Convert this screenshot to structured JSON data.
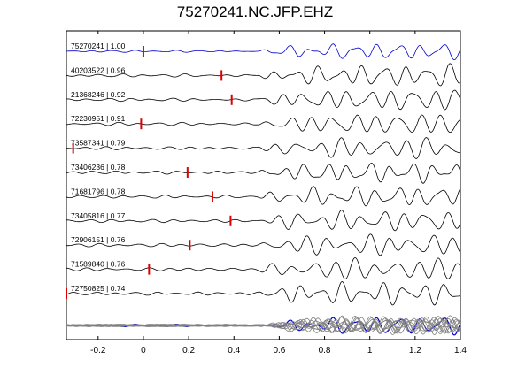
{
  "figure": {
    "title": "75270241.NC.JFP.EHZ"
  },
  "chart_data": {
    "type": "line",
    "title": "75270241.NC.JFP.EHZ",
    "xlabel": "",
    "ylabel": "",
    "xlim": [
      -0.34,
      1.4
    ],
    "xticks": [
      -0.2,
      0,
      0.2,
      0.4,
      0.6,
      0.8,
      1,
      1.2,
      1.4
    ],
    "xtick_labels": [
      "-0.2",
      "0",
      "0.2",
      "0.4",
      "0.6",
      "0.8",
      "1",
      "1.2",
      "1.4"
    ],
    "grid": false,
    "colors": {
      "master": "#0000cc",
      "trace": "#000000",
      "pick": "#dd0000",
      "stack": "#808080"
    },
    "traces": [
      {
        "label": "75270241 | 1.00",
        "pick_time": 0.0,
        "color": "master"
      },
      {
        "label": "40203522 | 0.96",
        "pick_time": 0.345,
        "color": "trace"
      },
      {
        "label": "21368246 | 0.92",
        "pick_time": 0.39,
        "color": "trace"
      },
      {
        "label": "72230951 | 0.91",
        "pick_time": -0.01,
        "color": "trace"
      },
      {
        "label": "73587341 | 0.79",
        "pick_time": -0.31,
        "color": "trace"
      },
      {
        "label": "73406236 | 0.78",
        "pick_time": 0.195,
        "color": "trace"
      },
      {
        "label": "71681796 | 0.78",
        "pick_time": 0.305,
        "color": "trace"
      },
      {
        "label": "73405816 | 0.77",
        "pick_time": 0.385,
        "color": "trace"
      },
      {
        "label": "72906151 | 0.76",
        "pick_time": 0.205,
        "color": "trace"
      },
      {
        "label": "71589840 | 0.76",
        "pick_time": 0.025,
        "color": "trace"
      },
      {
        "label": "72750825 | 0.74",
        "pick_time": -0.34,
        "color": "trace"
      }
    ],
    "stack_panel": {
      "description_visible": false
    }
  }
}
